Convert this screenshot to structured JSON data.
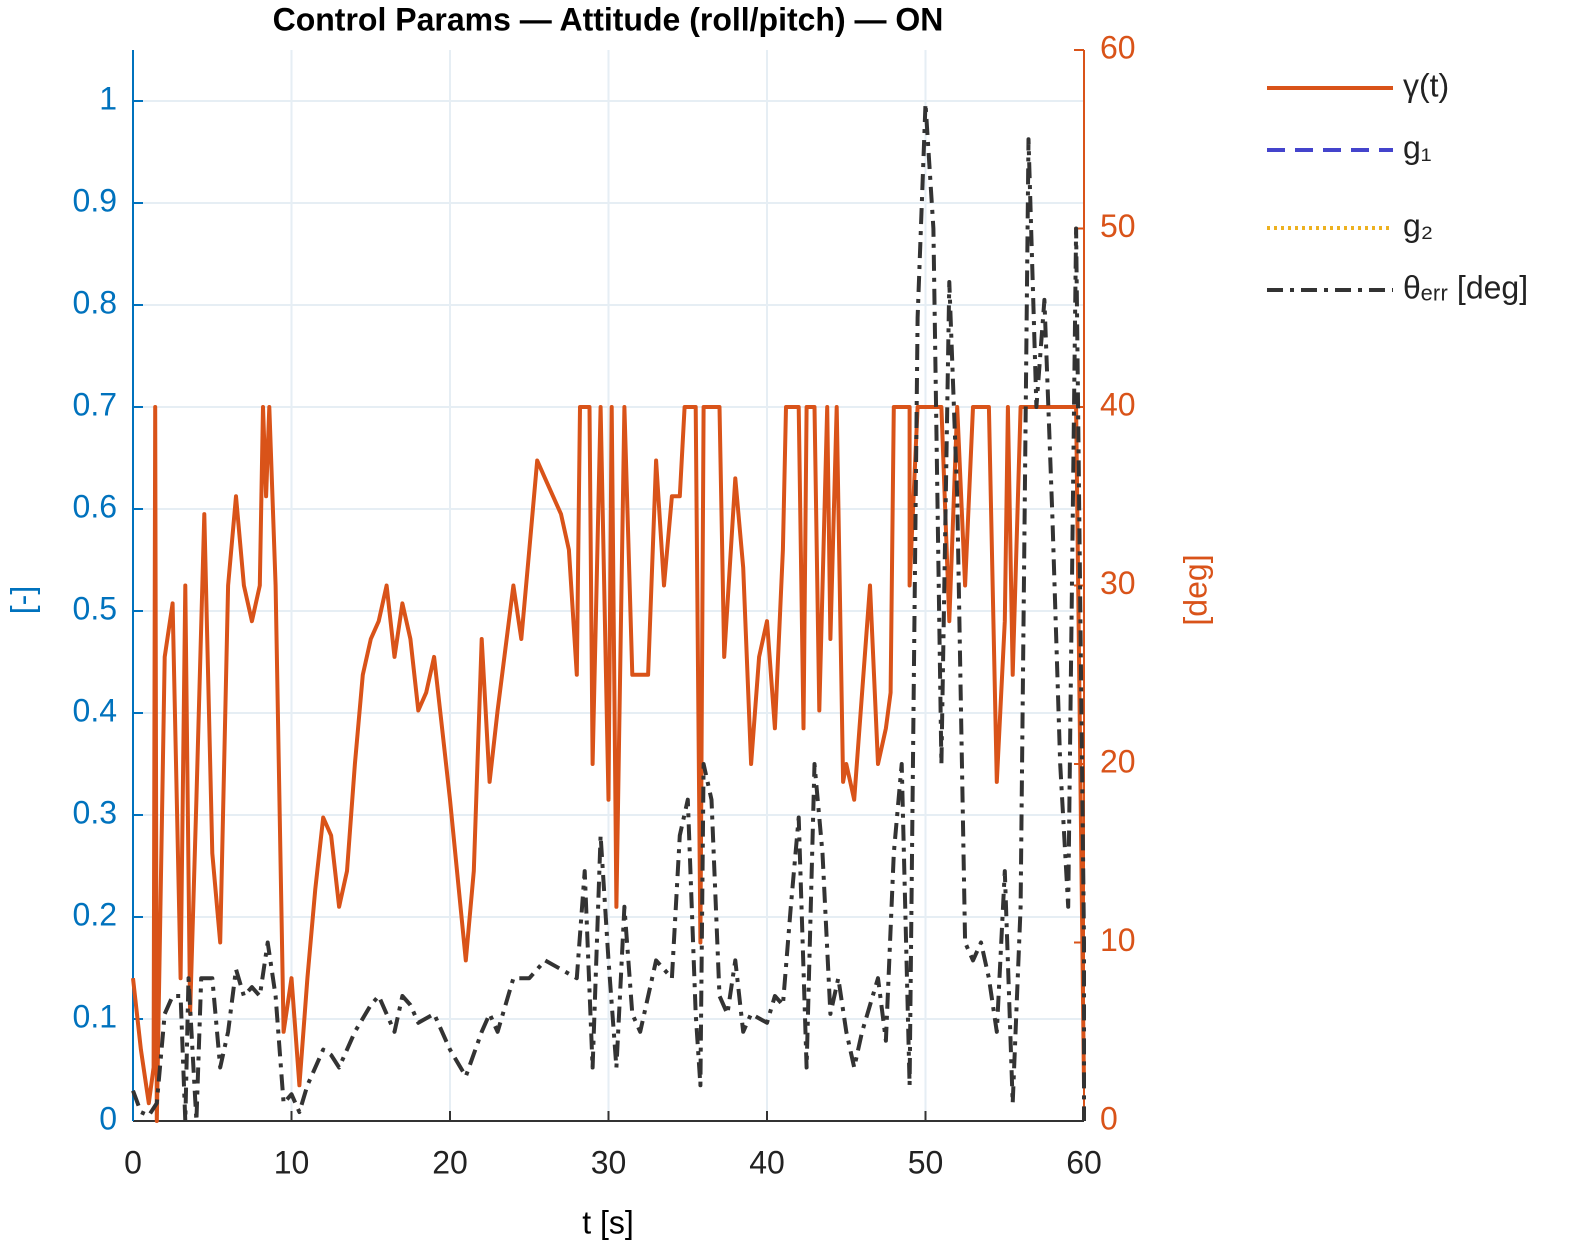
{
  "chart_data": {
    "type": "line",
    "title": "Control Params — Attitude (roll/pitch) — ON",
    "xlabel": "t [s]",
    "ylabel": "[-]",
    "y2label": "[deg]",
    "xlim": [
      0,
      60
    ],
    "xticks": [
      0,
      10,
      20,
      30,
      40,
      50,
      60
    ],
    "ylim": [
      0,
      1.05
    ],
    "yticks": [
      0,
      0.1,
      0.2,
      0.3,
      0.4,
      0.5,
      0.6,
      0.7,
      0.8,
      0.9,
      1
    ],
    "y2lim": [
      0,
      60
    ],
    "y2ticks": [
      0,
      10,
      20,
      30,
      40,
      50,
      60
    ],
    "grid": true,
    "legend": "outside-right",
    "ycolor": "#0072BD",
    "y2color": "#D95319",
    "series": [
      {
        "name": "γ(t)",
        "color": "#D95319",
        "dash": "solid",
        "axis": "y2",
        "x": [
          0,
          0.5,
          1,
          1.3,
          1.4,
          1.5,
          2,
          2.5,
          3,
          3.3,
          3.6,
          4,
          4.5,
          5,
          5.5,
          6,
          6.5,
          7,
          7.5,
          8,
          8.2,
          8.4,
          8.6,
          9,
          9.5,
          10,
          10.5,
          11,
          11.5,
          12,
          12.5,
          13,
          13.5,
          14,
          14.5,
          15,
          15.5,
          16,
          16.5,
          17,
          17.5,
          18,
          18.5,
          19,
          19.5,
          20,
          21,
          21.5,
          22,
          22.5,
          23,
          24,
          24.5,
          25,
          25.5,
          26,
          27,
          27.5,
          28,
          28.2,
          28.8,
          29,
          29.5,
          30,
          30.2,
          30.5,
          31,
          31.5,
          32,
          32.5,
          33,
          33.5,
          34,
          34.5,
          34.8,
          35.5,
          35.8,
          36,
          37,
          37.3,
          38,
          38.5,
          39,
          39.5,
          40,
          40.5,
          41,
          41.2,
          42,
          42.3,
          42.5,
          43,
          43.3,
          43.8,
          44,
          44.4,
          44.8,
          45,
          45.5,
          46,
          46.5,
          47,
          47.5,
          47.8,
          48,
          49,
          49,
          49.5,
          51,
          51.5,
          52,
          52.5,
          53,
          54,
          54.5,
          55,
          55.2,
          55.5,
          56,
          59.5,
          60
        ],
        "values": [
          8,
          4,
          1,
          3,
          40,
          0,
          26,
          29,
          8,
          30,
          6,
          18,
          34,
          15,
          10,
          30,
          35,
          30,
          28,
          30,
          40,
          35,
          40,
          30,
          5,
          8,
          2,
          8,
          13,
          17,
          16,
          12,
          14,
          20,
          25,
          27,
          28,
          30,
          26,
          29,
          27,
          23,
          24,
          26,
          22,
          18,
          9,
          14,
          27,
          19,
          23,
          30,
          27,
          32,
          37,
          36,
          34,
          32,
          25,
          40,
          40,
          20,
          40,
          18,
          40,
          12,
          40,
          25,
          25,
          25,
          37,
          30,
          35,
          35,
          40,
          40,
          10,
          40,
          40,
          26,
          36,
          31,
          20,
          26,
          28,
          22,
          32,
          40,
          40,
          22,
          40,
          40,
          23,
          40,
          27,
          40,
          19,
          20,
          18,
          24,
          30,
          20,
          22,
          24,
          40,
          40,
          30,
          40,
          40,
          28,
          40,
          30,
          40,
          40,
          19,
          28,
          40,
          25,
          40,
          40,
          2
        ]
      },
      {
        "name": "g₁",
        "color": "#4444CC",
        "dash": "dashed",
        "axis": "y",
        "x": [],
        "values": []
      },
      {
        "name": "g₂",
        "color": "#EDB120",
        "dash": "dotted",
        "axis": "y",
        "x": [],
        "values": []
      },
      {
        "name": "θₑᵣᵣ [deg]",
        "color": "#333333",
        "dash": "dashdot",
        "axis": "y2",
        "x": [
          0,
          0.5,
          1,
          1.5,
          2,
          2.5,
          3,
          3.3,
          3.5,
          4,
          4.3,
          5,
          5.5,
          6,
          6.5,
          7,
          7.5,
          8,
          8.5,
          9,
          9.5,
          10,
          10.5,
          11,
          12,
          12.5,
          13,
          14,
          15,
          15.5,
          16,
          16.5,
          17,
          17.5,
          18,
          19,
          20,
          21,
          22,
          22.5,
          23,
          24,
          25,
          26,
          27,
          28,
          28.5,
          29,
          29.5,
          30,
          30.5,
          31,
          31.5,
          32,
          33,
          34,
          34.5,
          35,
          35.5,
          35.8,
          36,
          36.5,
          37,
          37.5,
          38,
          38.5,
          39,
          40,
          40.5,
          41,
          41.5,
          42,
          42.5,
          43,
          43.5,
          44,
          44.5,
          45,
          45.5,
          46,
          47,
          47.5,
          48,
          48.5,
          49,
          49.5,
          50,
          50.5,
          51,
          51.5,
          52,
          52.5,
          53,
          53.5,
          54,
          54.5,
          55,
          55.5,
          56,
          56.5,
          57,
          57.5,
          58,
          58.5,
          59,
          59.5,
          60,
          60
        ],
        "values": [
          1.7,
          0.5,
          0.3,
          1,
          6,
          7,
          7,
          0,
          8,
          0,
          8,
          8,
          3,
          5,
          8.5,
          7,
          7.5,
          7,
          10,
          7,
          1,
          1.5,
          0.5,
          2,
          4,
          3.7,
          3,
          5,
          6.5,
          7,
          6,
          5,
          7,
          6.5,
          5.5,
          6,
          4,
          2.5,
          5,
          6,
          5,
          8,
          8,
          9,
          8.5,
          8,
          14,
          3,
          16,
          9,
          3,
          12,
          6,
          5,
          9,
          8,
          16,
          18,
          6,
          2,
          20,
          18,
          7,
          6,
          9,
          5,
          6,
          5.5,
          7,
          6.5,
          12,
          17,
          3,
          20,
          15,
          6,
          8,
          5,
          3,
          5,
          8,
          4.5,
          15,
          20,
          2,
          45,
          57,
          50,
          20,
          47,
          35,
          10,
          9,
          10,
          8,
          5,
          14,
          1,
          12,
          55,
          40,
          46,
          34,
          20,
          12,
          50,
          10,
          0
        ]
      }
    ]
  }
}
